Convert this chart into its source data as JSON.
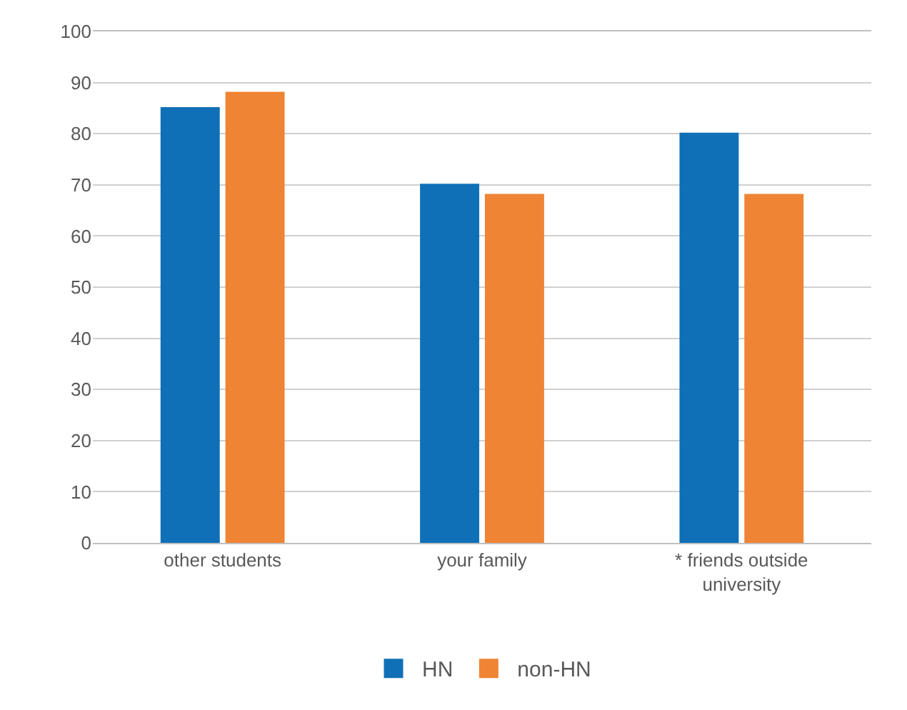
{
  "chart_data": {
    "type": "bar",
    "categories": [
      "other students",
      "your family",
      "* friends outside university"
    ],
    "series": [
      {
        "name": "HN",
        "color": "#0f70b7",
        "values": [
          85,
          70,
          80
        ]
      },
      {
        "name": "non-HN",
        "color": "#ef8434",
        "values": [
          88,
          68,
          68
        ]
      }
    ],
    "ylim": [
      0,
      100
    ],
    "yticks": [
      0,
      10,
      20,
      30,
      40,
      50,
      60,
      70,
      80,
      90,
      100
    ],
    "grid": "y",
    "legend": "bottom"
  }
}
